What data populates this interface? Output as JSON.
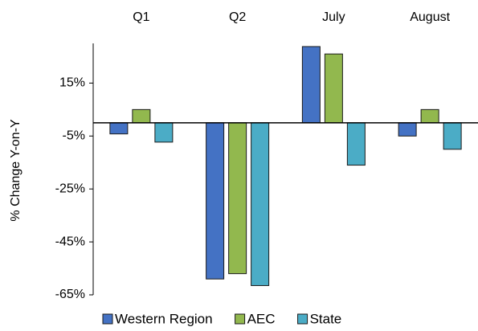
{
  "chart_data": {
    "type": "bar",
    "y_label": "% Change Y-on-Y",
    "categories": [
      "Q1",
      "Q2",
      "July",
      "August"
    ],
    "series": [
      {
        "name": "Western Region",
        "color": "#4472c4",
        "values": [
          -4.2,
          -59,
          28.8,
          -5
        ]
      },
      {
        "name": "AEC",
        "color": "#92b84e",
        "values": [
          5,
          -57,
          26,
          5
        ]
      },
      {
        "name": "State",
        "color": "#4bacc6",
        "values": [
          -7.3,
          -61.5,
          -16,
          -10
        ]
      }
    ],
    "ylim": [
      -65,
      30
    ],
    "yticks": [
      {
        "value": 15,
        "label": "15%"
      },
      {
        "value": -5,
        "label": "-5%"
      },
      {
        "value": -25,
        "label": "-25%"
      },
      {
        "value": -45,
        "label": "-45%"
      },
      {
        "value": -65,
        "label": "-65%"
      }
    ],
    "legend": "bottom"
  }
}
